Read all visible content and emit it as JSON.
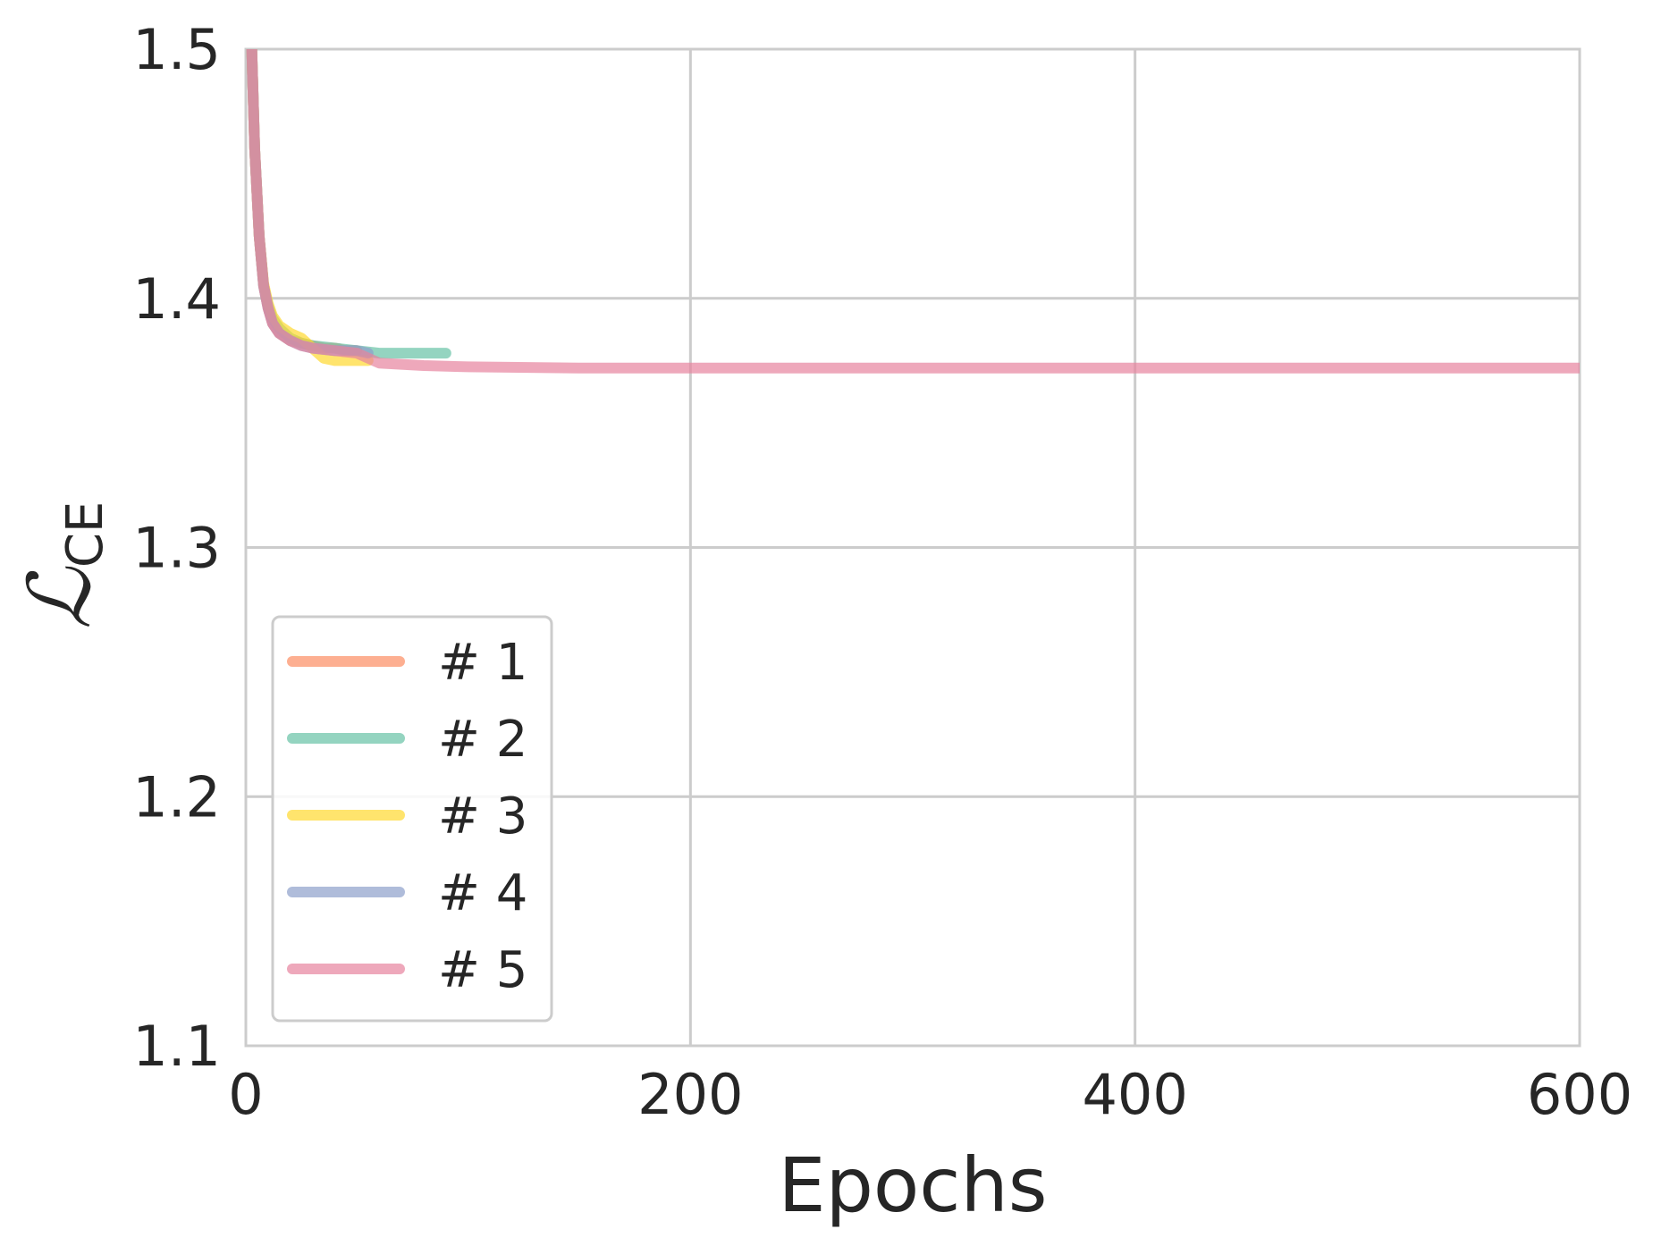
{
  "chart_data": {
    "type": "line",
    "xlabel": "Epochs",
    "ylabel_main": "ℒ",
    "ylabel_sub": "CE",
    "xlim": [
      0,
      600
    ],
    "ylim": [
      1.1,
      1.5
    ],
    "xticks": [
      0,
      200,
      400,
      600
    ],
    "xtick_labels": [
      "0",
      "200",
      "400",
      "600"
    ],
    "yticks": [
      1.1,
      1.2,
      1.3,
      1.4,
      1.5
    ],
    "ytick_labels": [
      "1.1",
      "1.2",
      "1.3",
      "1.4",
      "1.5"
    ],
    "grid": true,
    "legend_position": "lower-left",
    "series": [
      {
        "name": "# 1",
        "color": "#fc8d62",
        "x": [
          0,
          2,
          4,
          6,
          8,
          10,
          12,
          15,
          20,
          25,
          30,
          35,
          40,
          45,
          50
        ],
        "y": [
          1.6,
          1.52,
          1.46,
          1.425,
          1.405,
          1.396,
          1.39,
          1.386,
          1.383,
          1.382,
          1.381,
          1.38,
          1.38,
          1.379,
          1.379
        ]
      },
      {
        "name": "# 2",
        "color": "#66c2a5",
        "x": [
          0,
          2,
          4,
          6,
          8,
          10,
          12,
          15,
          20,
          25,
          30,
          40,
          50,
          60,
          70,
          80,
          90
        ],
        "y": [
          1.6,
          1.52,
          1.46,
          1.425,
          1.405,
          1.397,
          1.392,
          1.388,
          1.384,
          1.382,
          1.381,
          1.38,
          1.379,
          1.378,
          1.378,
          1.378,
          1.378
        ]
      },
      {
        "name": "# 3",
        "color": "#ffd92f",
        "x": [
          0,
          2,
          4,
          6,
          8,
          10,
          12,
          15,
          20,
          25,
          30,
          35,
          40,
          45,
          50,
          55
        ],
        "y": [
          1.6,
          1.52,
          1.46,
          1.425,
          1.406,
          1.398,
          1.393,
          1.389,
          1.386,
          1.384,
          1.38,
          1.376,
          1.375,
          1.375,
          1.375,
          1.375
        ]
      },
      {
        "name": "# 4",
        "color": "#8da0cb",
        "x": [
          0,
          2,
          4,
          6,
          8,
          10,
          12,
          15,
          20,
          25,
          30,
          40,
          50,
          55
        ],
        "y": [
          1.6,
          1.52,
          1.46,
          1.425,
          1.405,
          1.396,
          1.39,
          1.386,
          1.383,
          1.381,
          1.38,
          1.379,
          1.379,
          1.378
        ]
      },
      {
        "name": "# 5",
        "color": "#e7839e",
        "x": [
          0,
          2,
          4,
          6,
          8,
          10,
          12,
          15,
          20,
          25,
          30,
          40,
          50,
          60,
          80,
          100,
          150,
          200,
          300,
          400,
          500,
          600
        ],
        "y": [
          1.6,
          1.52,
          1.46,
          1.425,
          1.405,
          1.396,
          1.39,
          1.386,
          1.383,
          1.381,
          1.38,
          1.379,
          1.378,
          1.374,
          1.373,
          1.3725,
          1.372,
          1.372,
          1.372,
          1.372,
          1.372,
          1.372
        ]
      }
    ]
  }
}
